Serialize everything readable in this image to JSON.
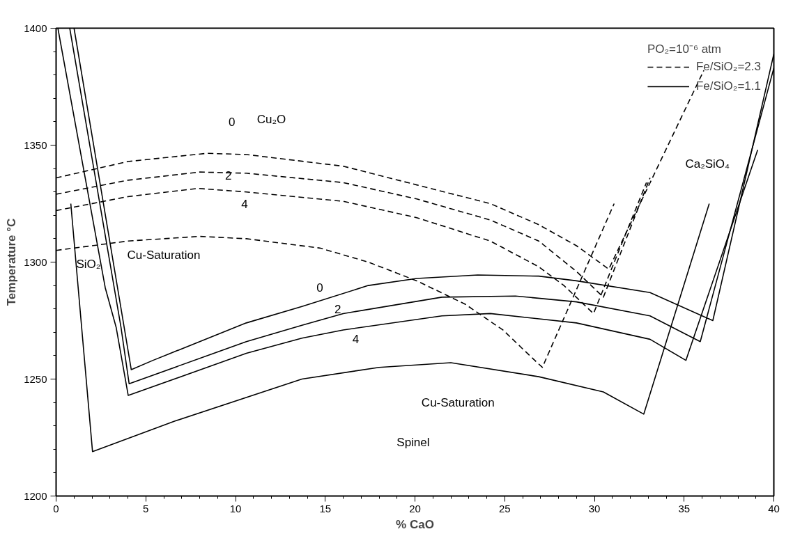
{
  "chart_data": {
    "type": "line",
    "xlabel": "% CaO",
    "ylabel": "Temperature °C",
    "legend_title": "PO₂=10⁻⁶ atm",
    "xlim": [
      0,
      40
    ],
    "ylim": [
      1200,
      1400
    ],
    "xticks": [
      0,
      {
        "value": 1,
        "label": null
      },
      {
        "value": 2,
        "label": null
      },
      {
        "value": 3,
        "label": null
      },
      {
        "value": 4,
        "label": null
      },
      5,
      {
        "value": 6,
        "label": null
      },
      {
        "value": 7,
        "label": null
      },
      {
        "value": 8,
        "label": null
      },
      {
        "value": 9,
        "label": null
      },
      10,
      {
        "value": 11,
        "label": null
      },
      {
        "value": 12,
        "label": null
      },
      {
        "value": 13,
        "label": null
      },
      {
        "value": 14,
        "label": null
      },
      15,
      {
        "value": 16,
        "label": null
      },
      {
        "value": 17,
        "label": null
      },
      {
        "value": 18,
        "label": null
      },
      {
        "value": 19,
        "label": null
      },
      20,
      {
        "value": 21,
        "label": null
      },
      {
        "value": 22,
        "label": null
      },
      {
        "value": 23,
        "label": null
      },
      {
        "value": 24,
        "label": null
      },
      25,
      {
        "value": 26,
        "label": null
      },
      {
        "value": 27,
        "label": null
      },
      {
        "value": 28,
        "label": null
      },
      {
        "value": 29,
        "label": null
      },
      30,
      {
        "value": 31,
        "label": null
      },
      {
        "value": 32,
        "label": null
      },
      {
        "value": 33,
        "label": null
      },
      {
        "value": 34,
        "label": null
      },
      35,
      {
        "value": 36,
        "label": null
      },
      {
        "value": 37,
        "label": null
      },
      {
        "value": 38,
        "label": null
      },
      {
        "value": 39,
        "label": null
      },
      40
    ],
    "yticks": [
      1200,
      {
        "value": 1210,
        "label": null
      },
      {
        "value": 1220,
        "label": null
      },
      {
        "value": 1230,
        "label": null
      },
      {
        "value": 1240,
        "label": null
      },
      1250,
      {
        "value": 1260,
        "label": null
      },
      {
        "value": 1270,
        "label": null
      },
      {
        "value": 1280,
        "label": null
      },
      {
        "value": 1290,
        "label": null
      },
      1300,
      {
        "value": 1310,
        "label": null
      },
      {
        "value": 1320,
        "label": null
      },
      {
        "value": 1330,
        "label": null
      },
      {
        "value": 1340,
        "label": null
      },
      1350,
      {
        "value": 1360,
        "label": null
      },
      {
        "value": 1370,
        "label": null
      },
      {
        "value": 1380,
        "label": null
      },
      {
        "value": 1390,
        "label": null
      },
      1400
    ],
    "grid": false,
    "legend": "top right",
    "marker": "none",
    "series": [
      {
        "name": "Fe/SiO₂=2.3",
        "color": "#000000",
        "line_style": "dashed",
        "x": [
          0,
          4,
          8.4,
          10.6,
          16,
          20.1,
          24.2,
          26.9,
          29,
          30.8,
          36.1
        ],
        "values": [
          1336,
          1343,
          1346.5,
          1346,
          1341,
          1333,
          1325,
          1316,
          1307,
          1297,
          1382
        ]
      },
      {
        "color": "#000000",
        "line_style": "dashed",
        "x": [
          0,
          4,
          8,
          10.6,
          16,
          20.1,
          24.2,
          26.9,
          29,
          30.5,
          33.1
        ],
        "values": [
          1329,
          1335,
          1338.5,
          1338,
          1334,
          1327,
          1318,
          1309,
          1296,
          1285,
          1336
        ]
      },
      {
        "color": "#000000",
        "line_style": "dashed",
        "x": [
          0,
          4,
          7.9,
          10.6,
          16,
          20.1,
          24.2,
          26.9,
          28.3,
          29.95,
          32.9
        ],
        "values": [
          1322,
          1328,
          1331.5,
          1330,
          1326,
          1319,
          1309,
          1298,
          1290,
          1278,
          1334
        ]
      },
      {
        "color": "#000000",
        "line_style": "dashed",
        "x": [
          0,
          4,
          8,
          10.6,
          14.7,
          17.4,
          20.1,
          22.8,
          24.9,
          26.4,
          27.1,
          31.1
        ],
        "values": [
          1305,
          1309,
          1311,
          1310,
          1306,
          1300,
          1292,
          1282,
          1271,
          1260,
          1255,
          1325
        ]
      },
      {
        "name": "Fe/SiO₂=1.1",
        "color": "#000000",
        "line_style": "solid",
        "x": [
          1.0,
          4.19,
          5.4,
          10.6,
          13.7,
          17.4,
          20.1,
          23.5,
          26.9,
          29,
          33.1,
          36.6,
          40
        ],
        "values": [
          1400,
          1254,
          1258,
          1274,
          1281,
          1290,
          1293,
          1294.5,
          1294,
          1292,
          1287,
          1275,
          1389
        ]
      },
      {
        "color": "#000000",
        "line_style": "solid",
        "x": [
          0.76,
          3.62,
          4.07,
          10.6,
          13.7,
          16,
          21.5,
          25.6,
          29,
          33.1,
          35.9,
          40
        ],
        "values": [
          1400,
          1272,
          1248,
          1266,
          1273,
          1278,
          1285,
          1285.5,
          1283,
          1277,
          1266,
          1383
        ]
      },
      {
        "color": "#000000",
        "line_style": "solid",
        "x": [
          0.1,
          2.74,
          3.35,
          4.02,
          10.6,
          13.7,
          16,
          21.5,
          24.2,
          29,
          33.1,
          35.1,
          39.1
        ],
        "values": [
          1400,
          1289,
          1272,
          1243,
          1261,
          1267.5,
          1271,
          1277,
          1278,
          1274,
          1267,
          1258,
          1348
        ]
      },
      {
        "color": "#000000",
        "line_style": "solid",
        "x": [
          0.82,
          2.03,
          6.6,
          13.7,
          18,
          22,
          26.9,
          30.5,
          32.75,
          36.4
        ],
        "values": [
          1325,
          1219,
          1232,
          1250,
          1255,
          1257,
          1251,
          1244.5,
          1235,
          1325
        ]
      }
    ],
    "annotations": [
      "0",
      "Cu₂O",
      "2",
      "4",
      "Cu-Saturation",
      "SiO₂",
      "0",
      "2",
      "4",
      "Cu-Saturation",
      "Spinel",
      "Ca₂SiO₄"
    ]
  }
}
